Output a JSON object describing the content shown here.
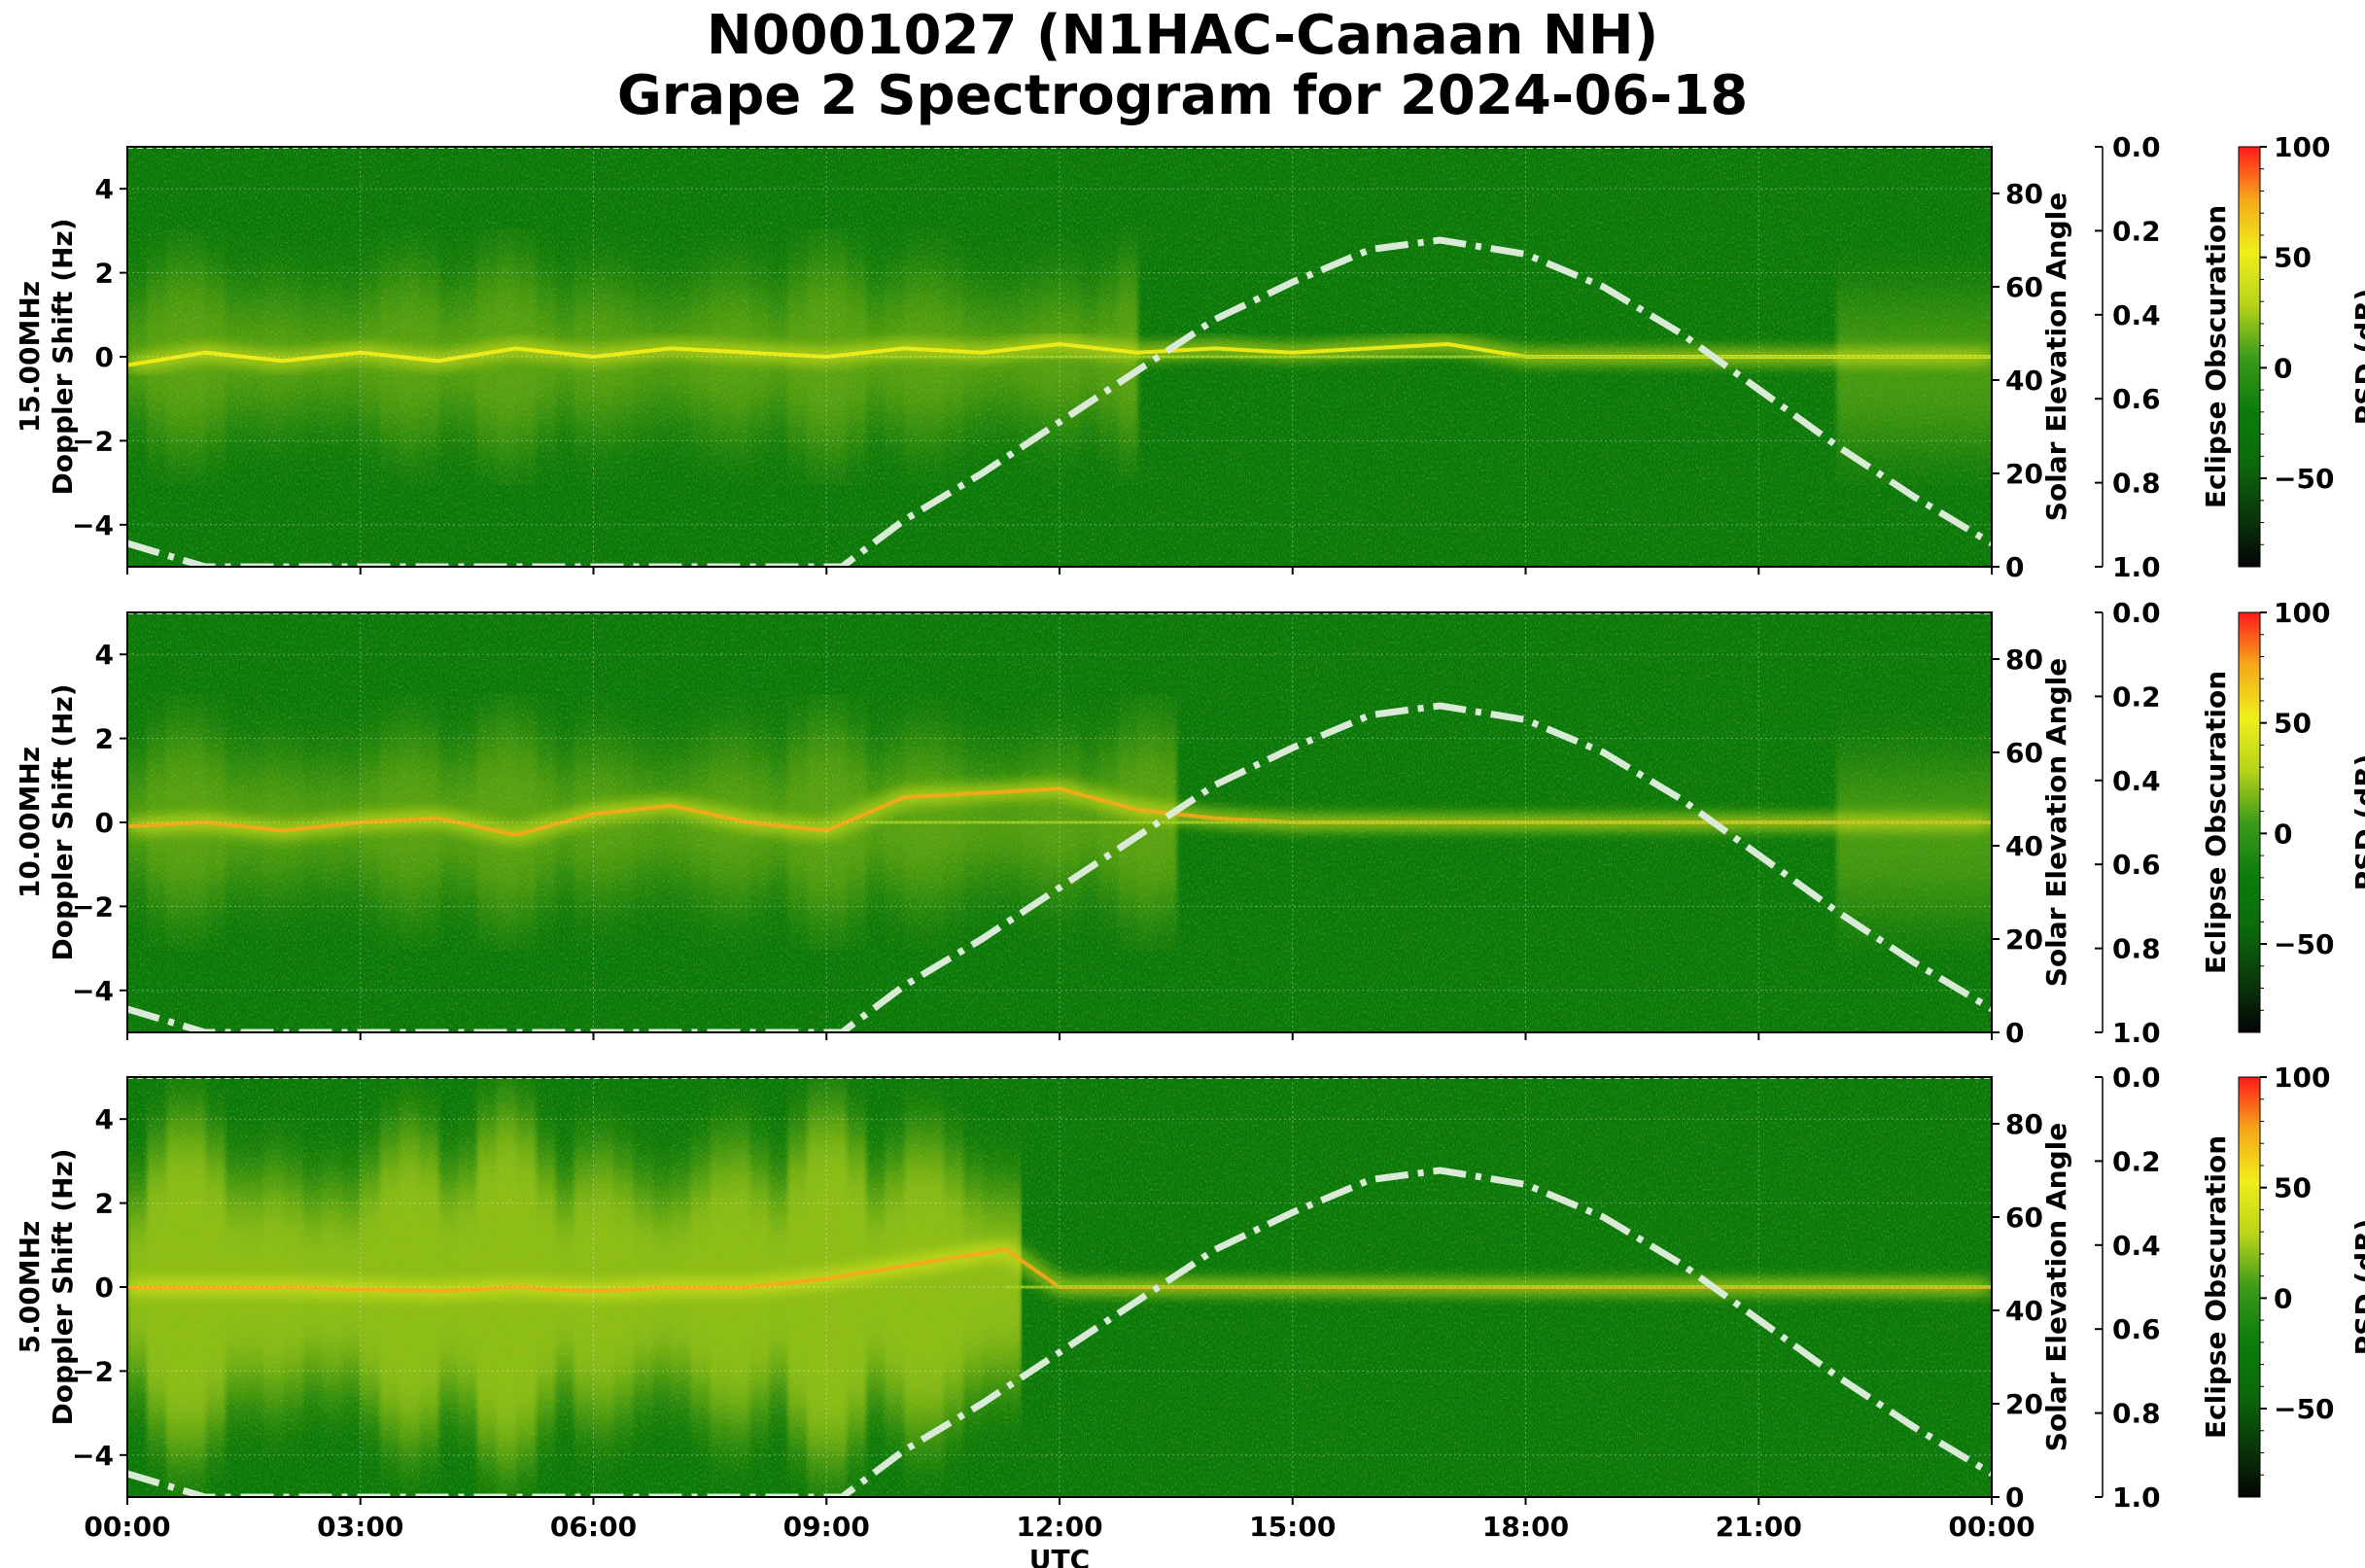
{
  "title": {
    "line1": "N0001027 (N1HAC-Canaan NH)",
    "line2": "Grape 2 Spectrogram for 2024-06-18"
  },
  "colors": {
    "solar_curve": "#d9ead6",
    "colormap": [
      "#050505",
      "#0a3a0a",
      "#0b6b0b",
      "#0d7d0d",
      "#3c9b1a",
      "#b8d41a",
      "#f0ee1a",
      "#f5a81a",
      "#ff1a1a"
    ]
  },
  "chart_data": [
    {
      "type": "heatmap",
      "panel": "15.00MHz",
      "ylabel": "15.00MHz\nDoppler Shift (Hz)",
      "ylabel_lines": [
        "15.00MHz",
        "Doppler Shift (Hz)"
      ],
      "ylim": [
        -5,
        5
      ],
      "yticks": [
        -4,
        -2,
        0,
        2,
        4
      ],
      "ytick_labels": [
        "−4",
        "−2",
        "0",
        "2",
        "4"
      ],
      "xlim": [
        0,
        24
      ],
      "xticks": [
        0,
        3,
        6,
        9,
        12,
        15,
        18,
        21,
        24
      ],
      "right_axis": {
        "label": "Solar Elevation Angle",
        "ylim": [
          0,
          90
        ],
        "ticks": [
          0,
          20,
          40,
          60,
          80
        ],
        "tick_labels": [
          "0",
          "20",
          "40",
          "60",
          "80"
        ]
      },
      "eclipse_axis": {
        "label": "Eclipse Obscuration",
        "ylim": [
          1.0,
          0.0
        ],
        "ticks": [
          0.0,
          0.2,
          0.4,
          0.6,
          0.8,
          1.0
        ],
        "tick_labels": [
          "0.0",
          "0.2",
          "0.4",
          "0.6",
          "0.8",
          "1.0"
        ]
      },
      "colorbar": {
        "label": "PSD (dB)",
        "range": [
          -90,
          100
        ],
        "ticks": [
          100,
          50,
          0,
          -50
        ],
        "tick_labels": [
          "100",
          "50",
          "0",
          "−50"
        ]
      },
      "signal_trace": [
        [
          0,
          -0.2
        ],
        [
          1,
          0.1
        ],
        [
          2,
          -0.1
        ],
        [
          3,
          0.1
        ],
        [
          4,
          -0.1
        ],
        [
          5,
          0.2
        ],
        [
          6,
          0.0
        ],
        [
          7,
          0.2
        ],
        [
          8,
          0.1
        ],
        [
          9,
          0.0
        ],
        [
          10,
          0.2
        ],
        [
          11,
          0.1
        ],
        [
          12,
          0.3
        ],
        [
          13,
          0.1
        ],
        [
          14,
          0.2
        ],
        [
          15,
          0.1
        ],
        [
          16,
          0.2
        ],
        [
          17,
          0.3
        ],
        [
          18,
          0.0
        ],
        [
          19,
          0.0
        ],
        [
          20,
          0.0
        ],
        [
          21,
          0.0
        ],
        [
          22,
          0.0
        ],
        [
          23,
          0.0
        ],
        [
          24,
          0.0
        ]
      ],
      "solar_elevation": [
        [
          0,
          5
        ],
        [
          1,
          0
        ],
        [
          9.2,
          0
        ],
        [
          10,
          10
        ],
        [
          11,
          20
        ],
        [
          12,
          31
        ],
        [
          13,
          42
        ],
        [
          14,
          53
        ],
        [
          15,
          61
        ],
        [
          16,
          68
        ],
        [
          16.9,
          70
        ],
        [
          18,
          67
        ],
        [
          19,
          60
        ],
        [
          20,
          50
        ],
        [
          21,
          38
        ],
        [
          22,
          26
        ],
        [
          23,
          15
        ],
        [
          24,
          5
        ]
      ]
    },
    {
      "type": "heatmap",
      "panel": "10.00MHz",
      "ylabel": "10.00MHz\nDoppler Shift (Hz)",
      "ylabel_lines": [
        "10.00MHz",
        "Doppler Shift (Hz)"
      ],
      "ylim": [
        -5,
        5
      ],
      "yticks": [
        -4,
        -2,
        0,
        2,
        4
      ],
      "ytick_labels": [
        "−4",
        "−2",
        "0",
        "2",
        "4"
      ],
      "xlim": [
        0,
        24
      ],
      "xticks": [
        0,
        3,
        6,
        9,
        12,
        15,
        18,
        21,
        24
      ],
      "right_axis": {
        "label": "Solar Elevation Angle",
        "ylim": [
          0,
          90
        ],
        "ticks": [
          0,
          20,
          40,
          60,
          80
        ],
        "tick_labels": [
          "0",
          "20",
          "40",
          "60",
          "80"
        ]
      },
      "eclipse_axis": {
        "label": "Eclipse Obscuration",
        "ylim": [
          1.0,
          0.0
        ],
        "ticks": [
          0.0,
          0.2,
          0.4,
          0.6,
          0.8,
          1.0
        ],
        "tick_labels": [
          "0.0",
          "0.2",
          "0.4",
          "0.6",
          "0.8",
          "1.0"
        ]
      },
      "colorbar": {
        "label": "PSD (dB)",
        "range": [
          -90,
          100
        ],
        "ticks": [
          100,
          50,
          0,
          -50
        ],
        "tick_labels": [
          "100",
          "50",
          "0",
          "−50"
        ]
      },
      "signal_trace": [
        [
          0,
          -0.1
        ],
        [
          1,
          0.0
        ],
        [
          2,
          -0.2
        ],
        [
          3,
          0.0
        ],
        [
          4,
          0.1
        ],
        [
          5,
          -0.3
        ],
        [
          6,
          0.2
        ],
        [
          7,
          0.4
        ],
        [
          8,
          0.0
        ],
        [
          9,
          -0.2
        ],
        [
          10,
          0.6
        ],
        [
          11,
          0.7
        ],
        [
          12,
          0.8
        ],
        [
          13,
          0.3
        ],
        [
          14,
          0.1
        ],
        [
          15,
          0.0
        ],
        [
          16,
          0.0
        ],
        [
          17,
          0.0
        ],
        [
          18,
          0.0
        ],
        [
          19,
          0.0
        ],
        [
          20,
          0.0
        ],
        [
          21,
          0.0
        ],
        [
          22,
          0.0
        ],
        [
          23,
          0.0
        ],
        [
          24,
          0.0
        ]
      ],
      "solar_elevation": [
        [
          0,
          5
        ],
        [
          1,
          0
        ],
        [
          9.2,
          0
        ],
        [
          10,
          10
        ],
        [
          11,
          20
        ],
        [
          12,
          31
        ],
        [
          13,
          42
        ],
        [
          14,
          53
        ],
        [
          15,
          61
        ],
        [
          16,
          68
        ],
        [
          16.9,
          70
        ],
        [
          18,
          67
        ],
        [
          19,
          60
        ],
        [
          20,
          50
        ],
        [
          21,
          38
        ],
        [
          22,
          26
        ],
        [
          23,
          15
        ],
        [
          24,
          5
        ]
      ]
    },
    {
      "type": "heatmap",
      "panel": "5.00MHz",
      "ylabel": "5.00MHz\nDoppler Shift (Hz)",
      "ylabel_lines": [
        "5.00MHz",
        "Doppler Shift (Hz)"
      ],
      "ylim": [
        -5,
        5
      ],
      "yticks": [
        -4,
        -2,
        0,
        2,
        4
      ],
      "ytick_labels": [
        "−4",
        "−2",
        "0",
        "2",
        "4"
      ],
      "xlim": [
        0,
        24
      ],
      "xticks": [
        0,
        3,
        6,
        9,
        12,
        15,
        18,
        21,
        24
      ],
      "xtick_labels": [
        "00:00",
        "03:00",
        "06:00",
        "09:00",
        "12:00",
        "15:00",
        "18:00",
        "21:00",
        "00:00"
      ],
      "xlabel": "UTC",
      "right_axis": {
        "label": "Solar Elevation Angle",
        "ylim": [
          0,
          90
        ],
        "ticks": [
          0,
          20,
          40,
          60,
          80
        ],
        "tick_labels": [
          "0",
          "20",
          "40",
          "60",
          "80"
        ]
      },
      "eclipse_axis": {
        "label": "Eclipse Obscuration",
        "ylim": [
          1.0,
          0.0
        ],
        "ticks": [
          0.0,
          0.2,
          0.4,
          0.6,
          0.8,
          1.0
        ],
        "tick_labels": [
          "0.0",
          "0.2",
          "0.4",
          "0.6",
          "0.8",
          "1.0"
        ]
      },
      "colorbar": {
        "label": "PSD (dB)",
        "range": [
          -90,
          100
        ],
        "ticks": [
          100,
          50,
          0,
          -50
        ],
        "tick_labels": [
          "100",
          "50",
          "0",
          "−50"
        ]
      },
      "signal_trace": [
        [
          0,
          0.0
        ],
        [
          2,
          0.0
        ],
        [
          4,
          -0.1
        ],
        [
          5,
          0.0
        ],
        [
          6,
          -0.1
        ],
        [
          7,
          0.0
        ],
        [
          8,
          0.0
        ],
        [
          9,
          0.2
        ],
        [
          10,
          0.5
        ],
        [
          11,
          0.8
        ],
        [
          11.3,
          0.9
        ],
        [
          12,
          0.0
        ],
        [
          24,
          0.0
        ]
      ],
      "solar_elevation": [
        [
          0,
          5
        ],
        [
          1,
          0
        ],
        [
          9.2,
          0
        ],
        [
          10,
          10
        ],
        [
          11,
          20
        ],
        [
          12,
          31
        ],
        [
          13,
          42
        ],
        [
          14,
          53
        ],
        [
          15,
          61
        ],
        [
          16,
          68
        ],
        [
          16.9,
          70
        ],
        [
          18,
          67
        ],
        [
          19,
          60
        ],
        [
          20,
          50
        ],
        [
          21,
          38
        ],
        [
          22,
          26
        ],
        [
          23,
          15
        ],
        [
          24,
          5
        ]
      ]
    }
  ]
}
